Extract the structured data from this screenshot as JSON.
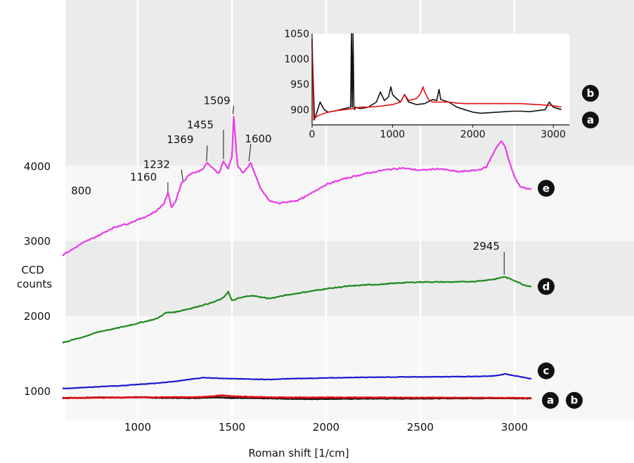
{
  "chart_data": {
    "type": "line",
    "xlabel": "Roman shift [1/cm]",
    "ylabel": "CCD counts",
    "xlim": [
      600,
      3900
    ],
    "ylim": [
      600,
      4600
    ],
    "x_ticks": [
      1000,
      1500,
      2000,
      2500,
      3000
    ],
    "y_ticks": [
      1000,
      2000,
      3000,
      4000
    ],
    "band_colors": [
      "#f7f7f7",
      "#ebebeb"
    ],
    "series": [
      {
        "label": "a",
        "color": "#111111",
        "x": [
          600,
          700,
          800,
          900,
          1000,
          1100,
          1200,
          1300,
          1400,
          1450,
          1500,
          1600,
          1700,
          1800,
          1900,
          2000,
          2200,
          2500,
          2800,
          3000,
          3090
        ],
        "y": [
          905,
          905,
          912,
          908,
          915,
          905,
          904,
          903,
          912,
          908,
          905,
          902,
          898,
          894,
          890,
          892,
          895,
          897,
          900,
          900,
          898
        ]
      },
      {
        "label": "b",
        "color": "#e01010",
        "x": [
          600,
          700,
          800,
          900,
          1000,
          1100,
          1200,
          1300,
          1400,
          1440,
          1500,
          1600,
          1700,
          1900,
          2200,
          2500,
          2800,
          3000,
          3090
        ],
        "y": [
          900,
          905,
          908,
          910,
          912,
          912,
          913,
          915,
          925,
          940,
          925,
          918,
          912,
          910,
          910,
          908,
          906,
          904,
          902
        ]
      },
      {
        "label": "c",
        "color": "#1a1ad0",
        "x": [
          600,
          700,
          800,
          900,
          1000,
          1100,
          1200,
          1300,
          1350,
          1400,
          1500,
          1600,
          1700,
          1800,
          2000,
          2200,
          2500,
          2800,
          2900,
          2950,
          3000,
          3090
        ],
        "y": [
          1030,
          1040,
          1055,
          1065,
          1085,
          1100,
          1125,
          1160,
          1175,
          1170,
          1160,
          1155,
          1150,
          1160,
          1170,
          1180,
          1185,
          1190,
          1200,
          1225,
          1200,
          1160
        ]
      },
      {
        "label": "d",
        "color": "#1e8a1e",
        "x": [
          600,
          700,
          800,
          900,
          1000,
          1100,
          1150,
          1200,
          1300,
          1400,
          1450,
          1480,
          1500,
          1530,
          1600,
          1700,
          1800,
          1900,
          2000,
          2100,
          2200,
          2300,
          2400,
          2500,
          2600,
          2700,
          2800,
          2900,
          2945,
          3000,
          3050,
          3090
        ],
        "y": [
          1640,
          1710,
          1790,
          1840,
          1900,
          1960,
          2040,
          2050,
          2110,
          2180,
          2230,
          2320,
          2200,
          2230,
          2270,
          2230,
          2280,
          2320,
          2360,
          2390,
          2410,
          2420,
          2440,
          2450,
          2450,
          2450,
          2460,
          2490,
          2520,
          2470,
          2410,
          2390
        ]
      },
      {
        "label": "e",
        "color": "#e83ce8",
        "x": [
          600,
          650,
          700,
          750,
          800,
          850,
          900,
          950,
          1000,
          1050,
          1100,
          1140,
          1160,
          1180,
          1200,
          1232,
          1250,
          1280,
          1320,
          1350,
          1369,
          1400,
          1430,
          1455,
          1480,
          1500,
          1509,
          1530,
          1560,
          1600,
          1650,
          1700,
          1750,
          1800,
          1850,
          1900,
          1950,
          2000,
          2100,
          2200,
          2300,
          2400,
          2500,
          2600,
          2650,
          2700,
          2800,
          2850,
          2900,
          2930,
          2950,
          2980,
          3000,
          3030,
          3060,
          3090
        ],
        "y": [
          2810,
          2880,
          2960,
          3020,
          3080,
          3150,
          3200,
          3230,
          3280,
          3330,
          3400,
          3500,
          3640,
          3450,
          3520,
          3770,
          3810,
          3900,
          3920,
          3970,
          4040,
          3960,
          3900,
          4060,
          3960,
          4120,
          4660,
          4000,
          3900,
          4040,
          3700,
          3530,
          3500,
          3520,
          3540,
          3600,
          3680,
          3750,
          3830,
          3890,
          3940,
          3970,
          3940,
          3960,
          3940,
          3920,
          3940,
          3980,
          4230,
          4330,
          4250,
          4000,
          3850,
          3720,
          3700,
          3690
        ]
      }
    ],
    "annotations": [
      {
        "text": "800",
        "x": 700,
        "y": 3620
      },
      {
        "text": "1160",
        "x": 1030,
        "y": 3800
      },
      {
        "text": "1232",
        "x": 1100,
        "y": 3970
      },
      {
        "text": "1369",
        "x": 1225,
        "y": 4300
      },
      {
        "text": "1455",
        "x": 1332,
        "y": 4500
      },
      {
        "text": "1509",
        "x": 1420,
        "y": 4820
      },
      {
        "text": "1600",
        "x": 1640,
        "y": 4310
      },
      {
        "text": "2945",
        "x": 2850,
        "y": 2880
      }
    ],
    "badges": [
      {
        "text": "e",
        "y": 3700
      },
      {
        "text": "d",
        "y": 2390
      },
      {
        "text": "c",
        "y": 1265
      },
      {
        "text": "a",
        "y": 900
      },
      {
        "text": "b",
        "y": 900
      }
    ],
    "inset": {
      "xlim": [
        0,
        3200
      ],
      "ylim": [
        870,
        1050
      ],
      "x_ticks": [
        0,
        1000,
        2000,
        3000
      ],
      "y_ticks": [
        900,
        950,
        1000,
        1050
      ],
      "series": [
        {
          "label": "a",
          "color": "#111111",
          "x": [
            0,
            30,
            60,
            100,
            150,
            200,
            300,
            400,
            480,
            490,
            500,
            510,
            520,
            530,
            540,
            600,
            700,
            800,
            850,
            900,
            950,
            980,
            1000,
            1050,
            1100,
            1150,
            1200,
            1300,
            1400,
            1500,
            1550,
            1580,
            1600,
            1700,
            1800,
            1900,
            2000,
            2100,
            2200,
            2300,
            2400,
            2500,
            2600,
            2700,
            2800,
            2900,
            2950,
            3000,
            3100
          ],
          "y": [
            1030,
            880,
            895,
            915,
            900,
            895,
            898,
            902,
            905,
            1050,
            905,
            1050,
            905,
            900,
            905,
            902,
            905,
            915,
            935,
            918,
            925,
            945,
            930,
            922,
            915,
            930,
            915,
            910,
            912,
            920,
            918,
            940,
            920,
            915,
            905,
            900,
            895,
            893,
            894,
            895,
            896,
            897,
            897,
            896,
            898,
            900,
            915,
            905,
            900
          ]
        },
        {
          "label": "b",
          "color": "#e01010",
          "x": [
            0,
            20,
            40,
            100,
            200,
            300,
            400,
            500,
            600,
            700,
            800,
            900,
            1000,
            1100,
            1150,
            1200,
            1300,
            1350,
            1380,
            1400,
            1450,
            1500,
            1600,
            1700,
            1800,
            1900,
            2000,
            2200,
            2400,
            2600,
            2800,
            3000,
            3100
          ],
          "y": [
            1040,
            880,
            885,
            890,
            895,
            898,
            900,
            902,
            905,
            905,
            906,
            908,
            910,
            915,
            930,
            918,
            922,
            932,
            945,
            935,
            920,
            915,
            915,
            915,
            913,
            912,
            912,
            912,
            912,
            912,
            910,
            908,
            905
          ]
        }
      ],
      "badges": [
        {
          "text": "b",
          "y": 910
        },
        {
          "text": "a",
          "y": 895
        }
      ]
    }
  }
}
